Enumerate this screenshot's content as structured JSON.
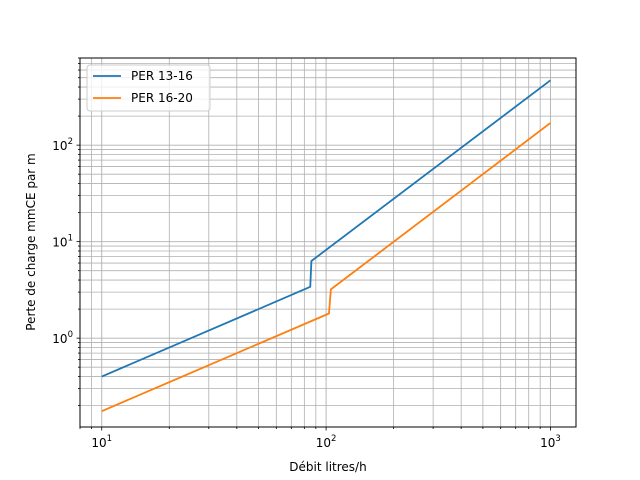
{
  "chart_data": {
    "type": "line",
    "title": "",
    "xlabel": "Débit litres/h",
    "ylabel": "Perte de charge mmCE par m",
    "xscale": "log",
    "yscale": "log",
    "xlim": [
      8,
      1300
    ],
    "ylim": [
      0.12,
      800
    ],
    "x_ticks": [
      {
        "value": 10,
        "base": "10",
        "exp": "1"
      },
      {
        "value": 100,
        "base": "10",
        "exp": "2"
      },
      {
        "value": 1000,
        "base": "10",
        "exp": "3"
      }
    ],
    "y_ticks": [
      {
        "value": 1,
        "base": "10",
        "exp": "0"
      },
      {
        "value": 10,
        "base": "10",
        "exp": "1"
      },
      {
        "value": 100,
        "base": "10",
        "exp": "2"
      }
    ],
    "grid": "major and minor",
    "legend_position": "upper left",
    "series": [
      {
        "name": "PER 13-16",
        "color": "#1f77b4",
        "points": [
          [
            10,
            0.4
          ],
          [
            85,
            3.4
          ],
          [
            86,
            6.3
          ],
          [
            1000,
            470
          ]
        ]
      },
      {
        "name": "PER 16-20",
        "color": "#ff7f0e",
        "points": [
          [
            10,
            0.175
          ],
          [
            103,
            1.8
          ],
          [
            105,
            3.2
          ],
          [
            1000,
            170
          ]
        ]
      }
    ]
  }
}
